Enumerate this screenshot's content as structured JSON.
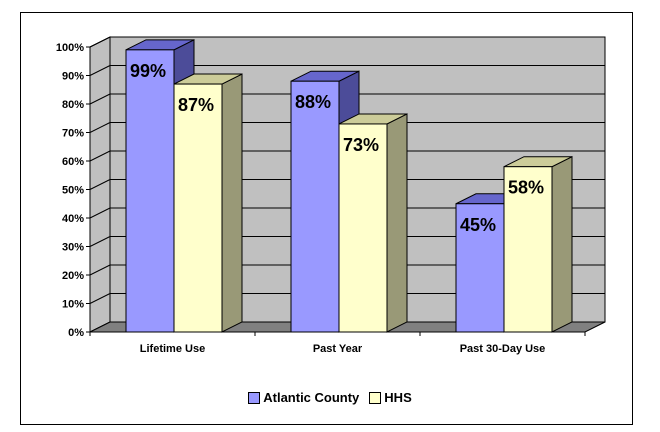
{
  "chart_data": {
    "type": "bar",
    "categories": [
      "Lifetime Use",
      "Past Year",
      "Past 30-Day Use"
    ],
    "series": [
      {
        "name": "Atlantic County",
        "values": [
          99,
          88,
          45
        ],
        "labels": [
          "99%",
          "88%",
          "45%"
        ]
      },
      {
        "name": "HHS",
        "values": [
          87,
          73,
          58
        ],
        "labels": [
          "87%",
          "73%",
          "58%"
        ]
      }
    ],
    "yticks": [
      "0%",
      "10%",
      "20%",
      "30%",
      "40%",
      "50%",
      "60%",
      "70%",
      "80%",
      "90%",
      "100%"
    ],
    "ylim": [
      0,
      100
    ],
    "grid": true,
    "legend": "bottom",
    "three_d": true
  },
  "colors": {
    "wall": "#c0c0c0",
    "floor": "#808080",
    "series_front": [
      "#9999ff",
      "#ffffcc"
    ],
    "series_top": [
      "#6666cc",
      "#cccc99"
    ],
    "series_side": [
      "#4c4c99",
      "#999977"
    ]
  }
}
